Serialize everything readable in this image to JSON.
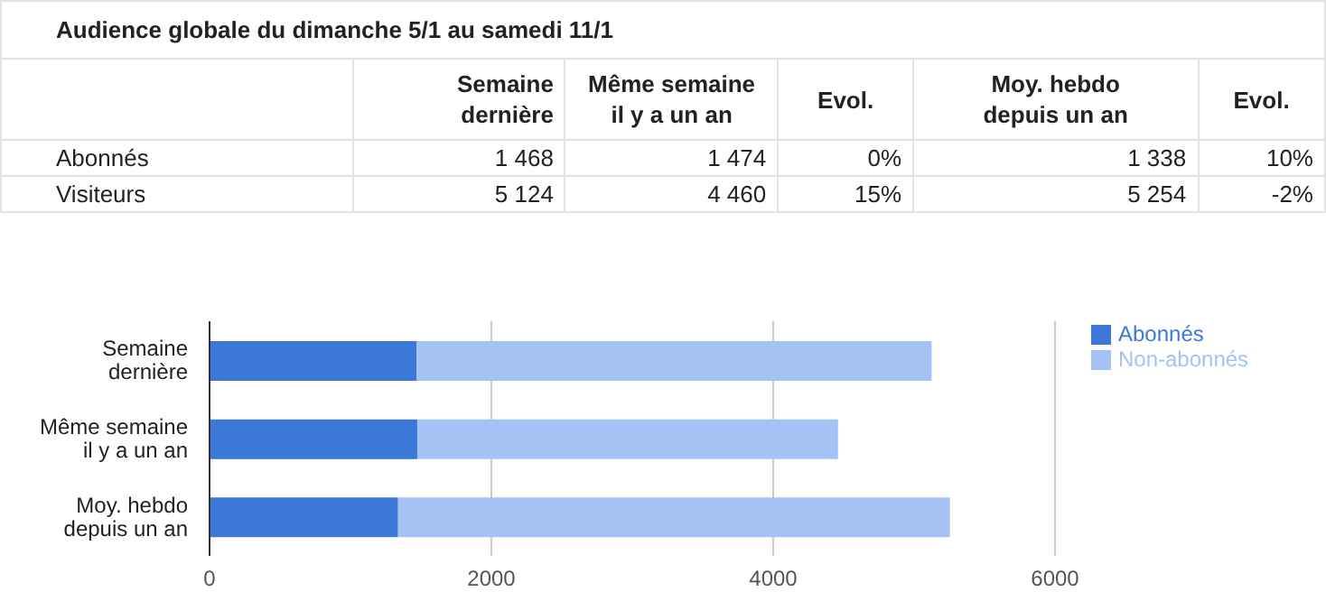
{
  "chart_data": {
    "type": "bar",
    "orientation": "horizontal",
    "stacked": true,
    "title": "Audience globale du dimanche 5/1 au samedi 11/1",
    "categories": [
      "Semaine\ndernière",
      "Même semaine\nil y a un an",
      "Moy. hebdo\ndepuis un an"
    ],
    "series": [
      {
        "name": "Abonnés",
        "color": "#3c78d8",
        "values": [
          1468,
          1474,
          1338
        ]
      },
      {
        "name": "Non-abonnés",
        "color": "#a4c2f4",
        "values": [
          3656,
          2986,
          3916
        ]
      }
    ],
    "annotations": [
      "Abonnés",
      "1 468",
      "1 474",
      "0%",
      "1 338",
      "10%",
      "Visiteurs",
      "5 124",
      "4 460",
      "15%",
      "5 254",
      "-2%",
      "Evol.",
      "Evol."
    ],
    "xlim": [
      0,
      6000
    ],
    "xticks": [
      0,
      2000,
      4000,
      6000
    ],
    "grid": "x",
    "legend": "top right"
  }
}
